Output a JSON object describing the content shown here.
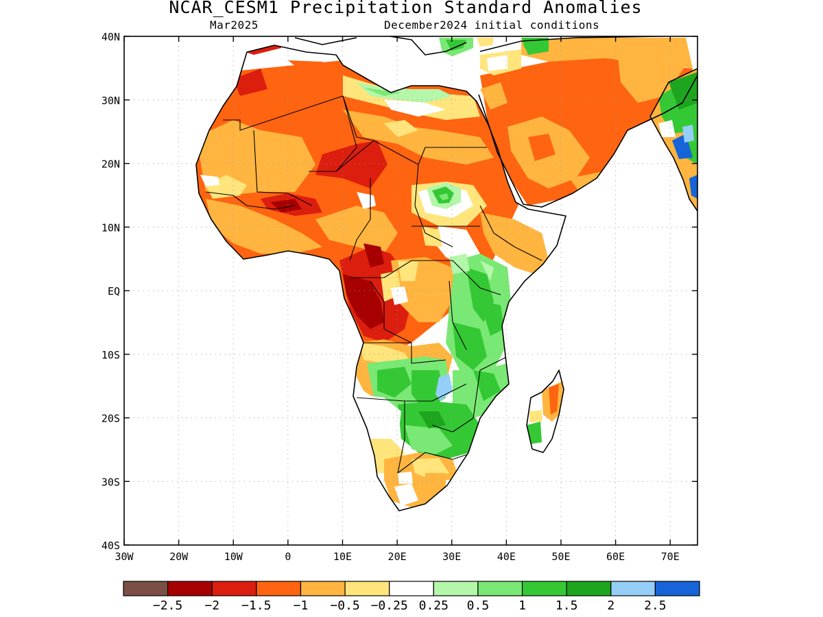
{
  "title": "NCAR_CESM1 Precipitation Standard Anomalies",
  "subtitle_left": "Mar2025",
  "subtitle_right": "December2024 initial conditions",
  "map": {
    "lon_range": [
      -30,
      75
    ],
    "lat_range": [
      -40,
      40
    ],
    "x_ticks": [
      {
        "lon": -30,
        "label": "30W"
      },
      {
        "lon": -20,
        "label": "20W"
      },
      {
        "lon": -10,
        "label": "10W"
      },
      {
        "lon": 0,
        "label": "0"
      },
      {
        "lon": 10,
        "label": "10E"
      },
      {
        "lon": 20,
        "label": "20E"
      },
      {
        "lon": 30,
        "label": "30E"
      },
      {
        "lon": 40,
        "label": "40E"
      },
      {
        "lon": 50,
        "label": "50E"
      },
      {
        "lon": 60,
        "label": "60E"
      },
      {
        "lon": 70,
        "label": "70E"
      }
    ],
    "y_ticks": [
      {
        "lat": 40,
        "label": "40N"
      },
      {
        "lat": 30,
        "label": "30N"
      },
      {
        "lat": 20,
        "label": "20N"
      },
      {
        "lat": 10,
        "label": "10N"
      },
      {
        "lat": 0,
        "label": "EQ"
      },
      {
        "lat": -10,
        "label": "10S"
      },
      {
        "lat": -20,
        "label": "20S"
      },
      {
        "lat": -30,
        "label": "30S"
      },
      {
        "lat": -40,
        "label": "40S"
      }
    ],
    "grid": "dotted",
    "colors": {
      "m2_5": "#7b4f45",
      "m2": "#a60000",
      "m1_5": "#dc1e0f",
      "m1": "#ff6410",
      "m0_5": "#ffb53f",
      "m0_25": "#ffe57c",
      "neutral": "#ffffff",
      "p0_25": "#b4f6aa",
      "p0_5": "#7ae874",
      "p1": "#35c835",
      "p1_5": "#1ea51e",
      "p2": "#95cff7",
      "p2_5": "#1664d8"
    },
    "coastline_color": "#000000"
  },
  "colorbar": {
    "colors": [
      "#7b4f45",
      "#a60000",
      "#dc1e0f",
      "#ff6410",
      "#ffb53f",
      "#ffe57c",
      "#ffffff",
      "#b4f6aa",
      "#7ae874",
      "#35c835",
      "#1ea51e",
      "#95cff7",
      "#1664d8"
    ],
    "labels": [
      "−2.5",
      "−2",
      "−1.5",
      "−1",
      "−0.5",
      "−0.25",
      "0.25",
      "0.5",
      "1",
      "1.5",
      "2",
      "2.5"
    ]
  }
}
